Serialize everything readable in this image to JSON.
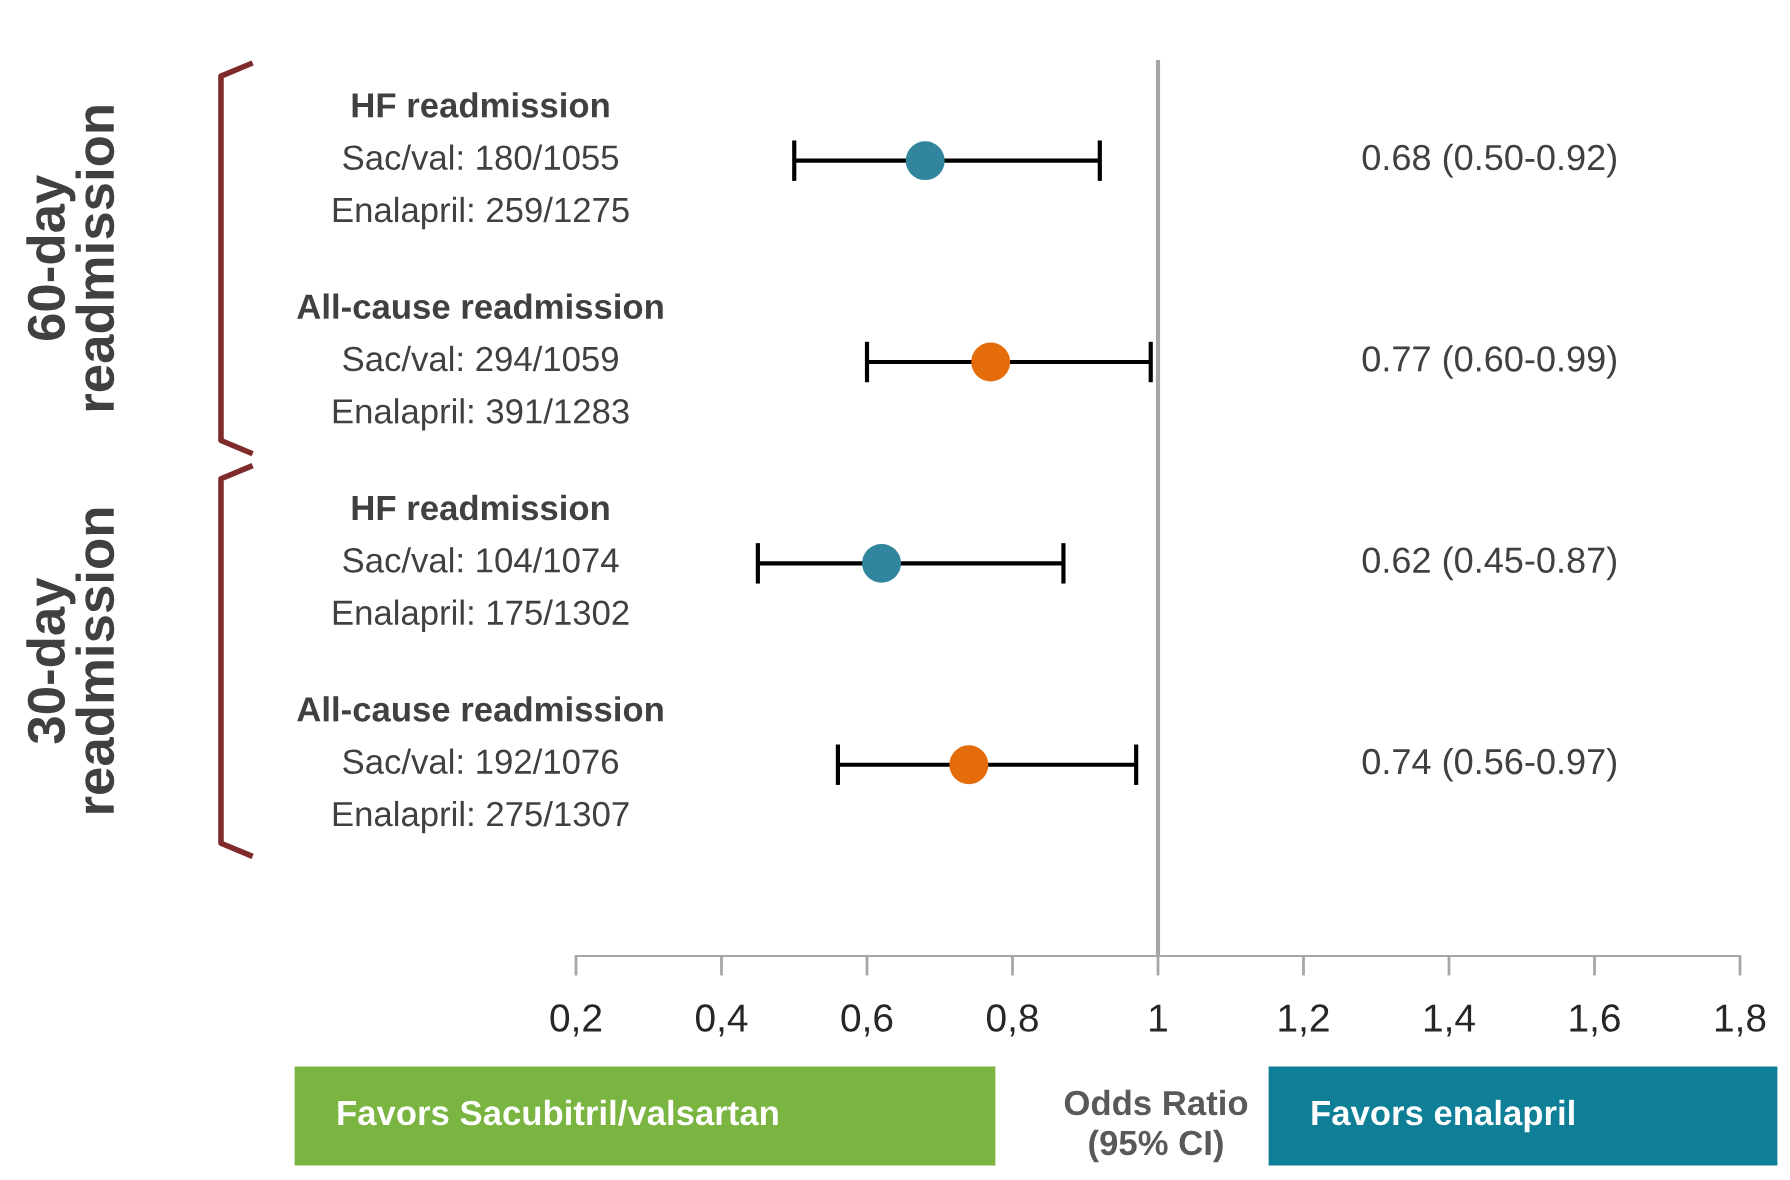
{
  "chart_data": {
    "type": "scatter",
    "orientation": "horizontal",
    "categories": [
      "HF readmission\nSac/val: 180/1055\nEnalapril: 259/1275",
      "All-cause readmission\nSac/val: 294/1059\nEnalapril: 391/1283",
      "HF readmission\nSac/val: 104/1074\nEnalapril: 175/1302",
      "All-cause readmission\nSac/val: 192/1076\nEnalapril: 275/1307"
    ],
    "values": [
      0.68,
      0.77,
      0.62,
      0.74
    ],
    "errors": [
      [
        0.5,
        0.92
      ],
      [
        0.6,
        0.99
      ],
      [
        0.45,
        0.87
      ],
      [
        0.56,
        0.97
      ]
    ],
    "colors": [
      "#31859c",
      "#e46c0a",
      "#31859c",
      "#e46c0a"
    ],
    "xlim": [
      0.2,
      1.8
    ],
    "xticks": [
      {
        "value": 0.2,
        "label": "0,2"
      },
      {
        "value": 0.4,
        "label": "0,4"
      },
      {
        "value": 0.6,
        "label": "0,6"
      },
      {
        "value": 0.8,
        "label": "0,8"
      },
      1,
      {
        "value": 1.2,
        "label": "1,2"
      },
      {
        "value": 1.4,
        "label": "1,4"
      },
      {
        "value": 1.6,
        "label": "1,6"
      },
      {
        "value": 1.8,
        "label": "1,8"
      }
    ],
    "xlabel": "Odds Ratio\n(95% CI)",
    "ref_lines": [
      {
        "axis": "x",
        "value": 1,
        "color": "#a6a6a6"
      }
    ],
    "annotations": [
      "60-day\nreadmission",
      "30-day\nreadmission",
      "Favors Sacubitril/valsartan",
      "Favors enalapril",
      "0.68 (0.50-0.92)",
      "0.77 (0.60-0.99)",
      "0.62 (0.45-0.87)",
      "0.74 (0.56-0.97)"
    ],
    "marker": "circle",
    "grid": false,
    "legend": false
  }
}
